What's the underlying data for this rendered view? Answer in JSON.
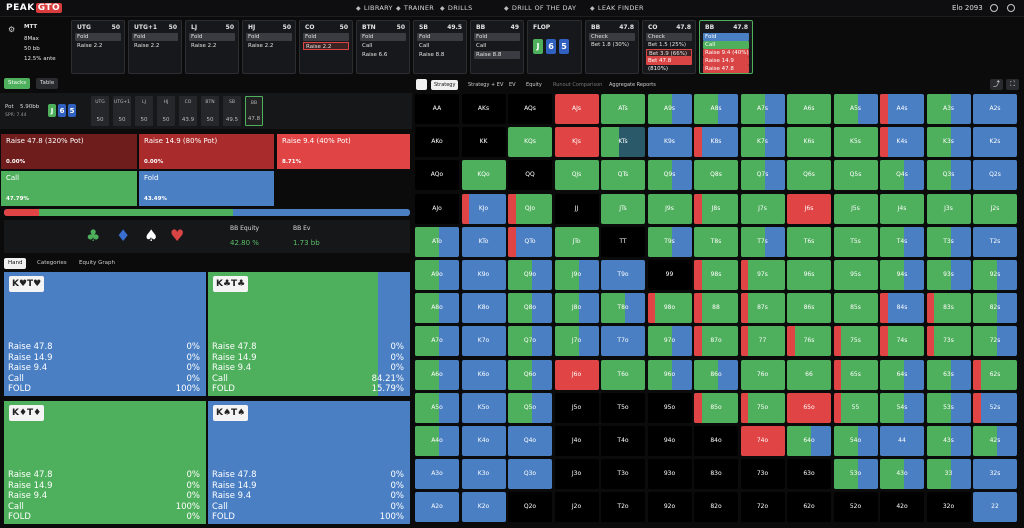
{
  "app": {
    "logo_a": "PEAK",
    "logo_b": "GTO"
  },
  "nav": {
    "items": [
      {
        "label": "LIBRARY",
        "icon": "book-icon"
      },
      {
        "label": "TRAINER",
        "icon": "trainer-icon"
      },
      {
        "label": "DRILLS",
        "icon": "drills-icon"
      },
      {
        "label": "DRILL OF THE DAY",
        "icon": "calendar-icon"
      },
      {
        "label": "LEAK FINDER",
        "icon": "leak-icon"
      }
    ],
    "elo": "Elo 2093"
  },
  "game": {
    "type": "MTT",
    "max": "8Max",
    "depth": "50 bb",
    "ante": "12.5% ante"
  },
  "seats": [
    {
      "pos": "UTG",
      "stack": "50",
      "actions": [
        "Fold",
        "Raise 2.2"
      ],
      "hl": 0
    },
    {
      "pos": "UTG+1",
      "stack": "50",
      "actions": [
        "Fold",
        "Raise 2.2"
      ],
      "hl": 0
    },
    {
      "pos": "LJ",
      "stack": "50",
      "actions": [
        "Fold",
        "Raise 2.2"
      ],
      "hl": 0
    },
    {
      "pos": "HJ",
      "stack": "50",
      "actions": [
        "Fold",
        "Raise 2.2"
      ],
      "hl": 0
    },
    {
      "pos": "CO",
      "stack": "50",
      "actions": [
        "Fold",
        "Raise 2.2"
      ],
      "hl": 1
    },
    {
      "pos": "BTN",
      "stack": "50",
      "actions": [
        "Fold",
        "Call",
        "Raise 6.6"
      ],
      "hl": 0
    },
    {
      "pos": "SB",
      "stack": "49.5",
      "actions": [
        "Fold",
        "Call",
        "Raise 8.8"
      ],
      "hl": 0
    },
    {
      "pos": "BB",
      "stack": "49",
      "actions": [
        "Fold",
        "Call",
        "Raise 8.8"
      ],
      "hl": 1
    }
  ],
  "flop": {
    "label": "FLOP",
    "cards": [
      {
        "r": "J",
        "c": "#4eaf5c"
      },
      {
        "r": "6",
        "c": "#3060c0"
      },
      {
        "r": "5",
        "c": "#3060c0"
      }
    ]
  },
  "postflop": [
    {
      "pos": "BB",
      "stack": "47.8",
      "actions": [
        "Check",
        "Bet 1.8 (30%)"
      ]
    },
    {
      "pos": "CO",
      "stack": "47.8",
      "actions": [
        "Check",
        "Bet 1.5 (25%)",
        "Bet 3.9 (66%)",
        "Bet 47.8 (810%)"
      ]
    },
    {
      "pos": "BB",
      "stack": "47.8",
      "actions": [
        "Fold",
        "Call",
        "Raise 9.4 (40%)",
        "Raise 14.9 (80%)",
        "Raise 47.8 (320%)"
      ]
    }
  ],
  "leftTabs": {
    "stacks": "Stacks",
    "table": "Table"
  },
  "pot": {
    "label": "Pot",
    "value": "5.90bb",
    "spr": "SPR: 7.44",
    "stacks": [
      {
        "p": "UTG",
        "v": "50"
      },
      {
        "p": "UTG+1",
        "v": "50"
      },
      {
        "p": "LJ",
        "v": "50"
      },
      {
        "p": "HJ",
        "v": "50"
      },
      {
        "p": "CO",
        "v": "43.9"
      },
      {
        "p": "BTN",
        "v": "50"
      },
      {
        "p": "SB",
        "v": "49.5"
      },
      {
        "p": "BB",
        "v": "47.8"
      }
    ]
  },
  "options": [
    {
      "label": "Raise 47.8 (320% Pot)",
      "pct": "0.00%",
      "color": "#6e1c1c"
    },
    {
      "label": "Raise 14.9 (80% Pot)",
      "pct": "0.00%",
      "color": "#a92b2b"
    },
    {
      "label": "Raise 9.4 (40% Pot)",
      "pct": "8.71%",
      "color": "#e04444"
    },
    {
      "label": "Call",
      "pct": "47.79%",
      "color": "#4eaf5c"
    },
    {
      "label": "Fold",
      "pct": "43.49%",
      "color": "#4a7fc4"
    }
  ],
  "equity": {
    "label1": "BB Equity",
    "val1": "42.80 %",
    "label2": "BB Ev",
    "val2": "1.73 bb",
    "bar": [
      {
        "w": 8.7,
        "c": "#e04444"
      },
      {
        "w": 47.8,
        "c": "#4eaf5c"
      },
      {
        "w": 43.5,
        "c": "#4a7fc4"
      }
    ]
  },
  "suits": [
    {
      "s": "♣",
      "c": "#4eaf5c",
      "name": "club-icon"
    },
    {
      "s": "♦",
      "c": "#3a6fd0",
      "name": "diamond-icon"
    },
    {
      "s": "♠",
      "c": "#ffffff",
      "name": "spade-icon"
    },
    {
      "s": "♥",
      "c": "#d94545",
      "name": "heart-icon"
    }
  ],
  "handTabs": [
    "Hand",
    "Categories",
    "Equity Graph"
  ],
  "hands": [
    {
      "label": "K♥T♥",
      "rows": [
        [
          "Raise 47.8",
          "0%"
        ],
        [
          "Raise 14.9",
          "0%"
        ],
        [
          "Raise 9.4",
          "0%"
        ],
        [
          "Call",
          "0%"
        ],
        [
          "FOLD",
          "100%"
        ]
      ],
      "bg": "#4a7fc4",
      "split": 0
    },
    {
      "label": "K♣T♣",
      "rows": [
        [
          "Raise 47.8",
          "0%"
        ],
        [
          "Raise 14.9",
          "0%"
        ],
        [
          "Raise 9.4",
          "0%"
        ],
        [
          "Call",
          "84.21%"
        ],
        [
          "FOLD",
          "15.79%"
        ]
      ],
      "bg": "#4eaf5c",
      "split": 84.2
    },
    {
      "label": "K♦T♦",
      "rows": [
        [
          "Raise 47.8",
          "0%"
        ],
        [
          "Raise 14.9",
          "0%"
        ],
        [
          "Raise 9.4",
          "0%"
        ],
        [
          "Call",
          "100%"
        ],
        [
          "FOLD",
          "0%"
        ]
      ],
      "bg": "#4eaf5c",
      "split": 100
    },
    {
      "label": "K♠T♠",
      "rows": [
        [
          "Raise 47.8",
          "0%"
        ],
        [
          "Raise 14.9",
          "0%"
        ],
        [
          "Raise 9.4",
          "0%"
        ],
        [
          "Call",
          "0%"
        ],
        [
          "FOLD",
          "100%"
        ]
      ],
      "bg": "#4a7fc4",
      "split": 0
    }
  ],
  "rightTabs": [
    "Strategy",
    "Strategy + EV",
    "EV",
    "Equity",
    "Runout Comparison",
    "Aggregate Reports"
  ],
  "colors": {
    "raise": "#e04444",
    "call": "#4eaf5c",
    "fold": "#4a7fc4",
    "empty": "#000000"
  },
  "grid_rows": [
    [
      "AA",
      "AKs",
      "AQs",
      "AJs",
      "ATs",
      "A9s",
      "A8s",
      "A7s",
      "A6s",
      "A5s",
      "A4s",
      "A3s",
      "A2s"
    ],
    [
      "AKo",
      "KK",
      "KQs",
      "KJs",
      "KTs",
      "K9s",
      "K8s",
      "K7s",
      "K6s",
      "K5s",
      "K4s",
      "K3s",
      "K2s"
    ],
    [
      "AQo",
      "KQo",
      "QQ",
      "QJs",
      "QTs",
      "Q9s",
      "Q8s",
      "Q7s",
      "Q6s",
      "Q5s",
      "Q4s",
      "Q3s",
      "Q2s"
    ],
    [
      "AJo",
      "KJo",
      "QJo",
      "JJ",
      "JTs",
      "J9s",
      "J8s",
      "J7s",
      "J6s",
      "J5s",
      "J4s",
      "J3s",
      "J2s"
    ],
    [
      "ATo",
      "KTo",
      "QTo",
      "JTo",
      "TT",
      "T9s",
      "T8s",
      "T7s",
      "T6s",
      "T5s",
      "T4s",
      "T3s",
      "T2s"
    ],
    [
      "A9o",
      "K9o",
      "Q9o",
      "J9o",
      "T9o",
      "99",
      "98s",
      "97s",
      "96s",
      "95s",
      "94s",
      "93s",
      "92s"
    ],
    [
      "A8o",
      "K8o",
      "Q8o",
      "J8o",
      "T8o",
      "98o",
      "88",
      "87s",
      "86s",
      "85s",
      "84s",
      "83s",
      "82s"
    ],
    [
      "A7o",
      "K7o",
      "Q7o",
      "J7o",
      "T7o",
      "97o",
      "87o",
      "77",
      "76s",
      "75s",
      "74s",
      "73s",
      "72s"
    ],
    [
      "A6o",
      "K6o",
      "Q6o",
      "J6o",
      "T6o",
      "96o",
      "86o",
      "76o",
      "66",
      "65s",
      "64s",
      "63s",
      "62s"
    ],
    [
      "A5o",
      "K5o",
      "Q5o",
      "J5o",
      "T5o",
      "95o",
      "85o",
      "75o",
      "65o",
      "55",
      "54s",
      "53s",
      "52s"
    ],
    [
      "A4o",
      "K4o",
      "Q4o",
      "J4o",
      "T4o",
      "94o",
      "84o",
      "74o",
      "64o",
      "54o",
      "44",
      "43s",
      "42s"
    ],
    [
      "A3o",
      "K3o",
      "Q3o",
      "J3o",
      "T3o",
      "93o",
      "83o",
      "73o",
      "63o",
      "53o",
      "43o",
      "33",
      "32s"
    ],
    [
      "A2o",
      "K2o",
      "Q2o",
      "J2o",
      "T2o",
      "92o",
      "82o",
      "72o",
      "62o",
      "52o",
      "42o",
      "32o",
      "22"
    ]
  ],
  "grid_mix": [
    [
      "k",
      "k",
      "k",
      "R",
      "G",
      "GB",
      "GB",
      "GB",
      "G",
      "GB",
      "RB",
      "GB",
      "B"
    ],
    [
      "k",
      "k",
      "G",
      "R",
      "GD",
      "B",
      "RB",
      "GB",
      "G",
      "G",
      "RB",
      "GB",
      "B"
    ],
    [
      "k",
      "G",
      "k",
      "G",
      "G",
      "GB",
      "G",
      "GB",
      "G",
      "G",
      "GB",
      "GB",
      "B"
    ],
    [
      "k",
      "RB",
      "RG",
      "k",
      "G",
      "G",
      "RG",
      "G",
      "R",
      "G",
      "G",
      "G",
      "G"
    ],
    [
      "GB",
      "B",
      "RB",
      "G",
      "k",
      "GB",
      "G",
      "GB",
      "G",
      "G",
      "GB",
      "GB",
      "B"
    ],
    [
      "GB",
      "B",
      "GB",
      "GB",
      "B",
      "k",
      "RG",
      "RG",
      "G",
      "G",
      "GB",
      "GB",
      "GB"
    ],
    [
      "GB",
      "B",
      "GB",
      "GB",
      "GB",
      "RG",
      "RG",
      "RG",
      "G",
      "G",
      "RB",
      "RG",
      "GB"
    ],
    [
      "GB",
      "B",
      "GB",
      "GB",
      "B",
      "GB",
      "RG",
      "RG",
      "RG",
      "RG",
      "RG",
      "RG",
      "GB"
    ],
    [
      "GB",
      "B",
      "GB",
      "R",
      "G",
      "GB",
      "GB",
      "G",
      "G",
      "RG",
      "GB",
      "GB",
      "RG"
    ],
    [
      "GB",
      "B",
      "GB",
      "k",
      "k",
      "k",
      "RG",
      "RG",
      "R",
      "RG",
      "GB",
      "GB",
      "RB"
    ],
    [
      "GB",
      "B",
      "B",
      "k",
      "k",
      "k",
      "k",
      "R",
      "GB",
      "GB",
      "B",
      "GB",
      "GB"
    ],
    [
      "B",
      "B",
      "B",
      "k",
      "k",
      "k",
      "k",
      "k",
      "k",
      "GB",
      "GB",
      "GB",
      "B"
    ],
    [
      "B",
      "B",
      "k",
      "k",
      "k",
      "k",
      "k",
      "k",
      "k",
      "k",
      "k",
      "k",
      "B"
    ]
  ]
}
